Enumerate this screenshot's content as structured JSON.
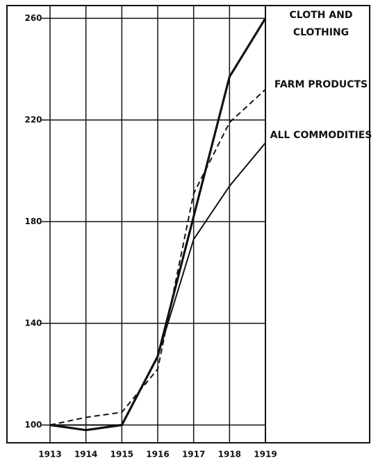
{
  "chart_data": {
    "type": "line",
    "categories": [
      "1913",
      "1914",
      "1915",
      "1916",
      "1917",
      "1918",
      "1919"
    ],
    "series": [
      {
        "name": "CLOTH AND CLOTHING",
        "color": "#111111",
        "style": "dotted",
        "values": [
          100,
          98,
          100,
          127,
          182,
          237,
          260
        ]
      },
      {
        "name": "FARM PRODUCTS",
        "color": "#111111",
        "style": "dashed",
        "values": [
          100,
          103,
          105,
          122,
          191,
          219,
          232
        ]
      },
      {
        "name": "ALL COMMODITIES",
        "color": "#111111",
        "style": "solid",
        "values": [
          100,
          100,
          100,
          127,
          173,
          194,
          211
        ]
      }
    ],
    "ylim": [
      93,
      265
    ],
    "yticks": [
      100,
      140,
      180,
      220,
      260
    ],
    "grid": true
  }
}
